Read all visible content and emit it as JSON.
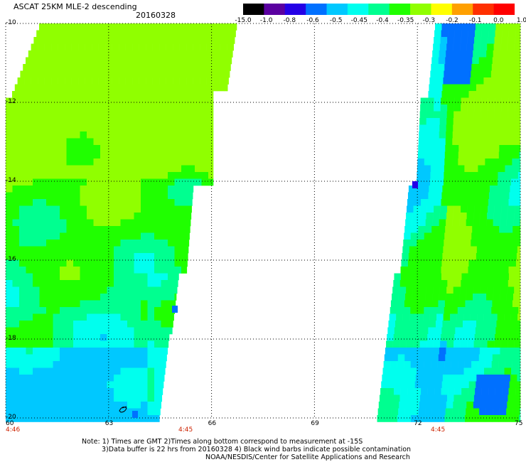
{
  "header": {
    "title": "ASCAT 25KM MLE-2 descending",
    "date": "20160328"
  },
  "colorbar": {
    "labels": [
      "-15.0",
      "-1.0",
      "-0.8",
      "-0.6",
      "-0.5",
      "-0.45",
      "-0.4",
      "-0.35",
      "-0.3",
      "-0.2",
      "-0.1",
      "0.0",
      "1.0"
    ],
    "colors": [
      "#000000",
      "#5a00a0",
      "#2400e6",
      "#0070ff",
      "#00c8ff",
      "#00ffee",
      "#00ff90",
      "#20ff00",
      "#90ff00",
      "#ffff00",
      "#ffa000",
      "#ff3000",
      "#ff0000"
    ]
  },
  "axes": {
    "lat_labels": [
      "-10",
      "-12",
      "-14",
      "-16",
      "-18",
      "-20"
    ],
    "lon_labels": [
      "60",
      "63",
      "66",
      "69",
      "72",
      "75"
    ],
    "lat_range": [
      -20,
      -10
    ],
    "lon_range": [
      60,
      75
    ]
  },
  "times": [
    "4:46",
    "4:45",
    "4:45"
  ],
  "footer": {
    "line1": "Note: 1) Times are GMT 2)Times along bottom correspond to measurement at -15S",
    "line2": "3)Data buffer is 22 hrs from 20160328 4) Black wind barbs indicate possible contamination",
    "line3": "NOAA/NESDIS/Center for Satellite Applications and Research"
  },
  "palette": {
    "lime": "#90ff00",
    "green": "#20ff00",
    "mint": "#00ff90",
    "aqua": "#00ffee",
    "cyan": "#00c8ff",
    "blue": "#0070ff",
    "deep": "#2400e6"
  }
}
